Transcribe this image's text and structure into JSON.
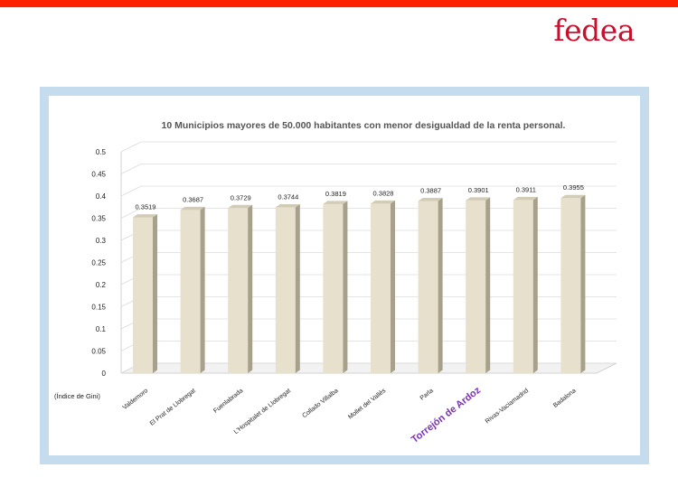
{
  "brand": {
    "name": "fedea",
    "color": "#c8102e",
    "top_bar_color": "#ff2200"
  },
  "chart_data": {
    "type": "bar",
    "title": "10 Municipios mayores de 50.000 habitantes con menor desigualdad de la renta personal.",
    "xlabel": "",
    "ylabel": "(Índice de Gini)",
    "ylim": [
      0,
      0.5
    ],
    "yticks": [
      "0",
      "0.05",
      "0.1",
      "0.15",
      "0.2",
      "0.25",
      "0.3",
      "0.35",
      "0.4",
      "0.45",
      "0.5"
    ],
    "categories": [
      "Valdemoro",
      "El Prat de Llobregat",
      "Fuenlabrada",
      "L'Hospitalet de Llobregat",
      "Collado Villalba",
      "Mollet del Vallès",
      "Parla",
      "Torrejón de Ardoz",
      "Rivas-Vaciamadrid",
      "Badalona"
    ],
    "values": [
      0.3519,
      0.3687,
      0.3729,
      0.3744,
      0.3819,
      0.3828,
      0.3887,
      0.3901,
      0.3911,
      0.3955
    ],
    "value_labels": [
      "0.3519",
      "0.3687",
      "0.3729",
      "0.3744",
      "0.3819",
      "0.3828",
      "0.3887",
      "0.3901",
      "0.3911",
      "0.3955"
    ],
    "highlight_category": "Torrejón de Ardoz",
    "highlight_color": "#7b2fbe",
    "bar_color": "#e6e0cc",
    "grid": true,
    "legend": "none"
  }
}
